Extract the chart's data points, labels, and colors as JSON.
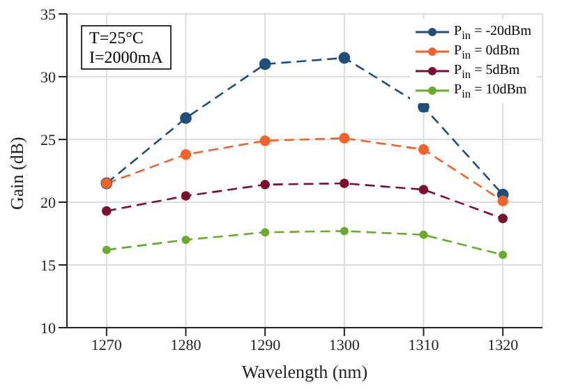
{
  "chart_data": {
    "type": "line",
    "xlabel": "Wavelength (nm)",
    "ylabel": "Gain (dB)",
    "x": [
      1270,
      1280,
      1290,
      1300,
      1310,
      1320
    ],
    "series": [
      {
        "name": "P$_{in}$ = -20dBm",
        "color": "#1f4e79",
        "values": [
          21.5,
          26.7,
          31.0,
          31.5,
          27.6,
          20.6
        ]
      },
      {
        "name": "P$_{in}$ = 0dBm",
        "color": "#f4622a",
        "values": [
          21.5,
          23.8,
          24.9,
          25.1,
          24.2,
          20.1
        ]
      },
      {
        "name": "P$_{in}$ = 5dBm",
        "color": "#7b0f2e",
        "values": [
          19.3,
          20.5,
          21.4,
          21.5,
          21.0,
          18.7
        ]
      },
      {
        "name": "P$_{in}$ = 10dBm",
        "color": "#6aab2e",
        "values": [
          16.2,
          17.0,
          17.6,
          17.7,
          17.4,
          15.8
        ]
      }
    ],
    "xlim": [
      1265,
      1325
    ],
    "xticks": [
      1270,
      1280,
      1290,
      1300,
      1310,
      1320
    ],
    "ylim": [
      10,
      35
    ],
    "yticks": [
      10,
      15,
      20,
      25,
      30,
      35
    ],
    "annotations": [
      "T=25°C",
      "I=2000mA"
    ],
    "grid": true,
    "legend": "top right",
    "marker": "circle",
    "line_style": "dashed"
  }
}
